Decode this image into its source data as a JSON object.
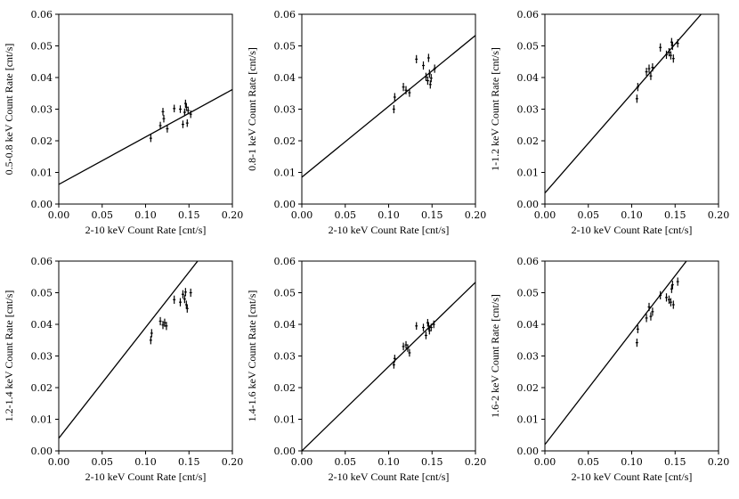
{
  "chart_data": [
    {
      "type": "scatter",
      "xlabel": "2-10 keV Count Rate [cnt/s]",
      "ylabel": "0.5-0.8 keV Count Rate [cnt/s]",
      "xlim": [
        0,
        0.2
      ],
      "ylim": [
        0,
        0.06
      ],
      "xticks": [
        "0.00",
        "0.05",
        "0.10",
        "0.15",
        "0.20"
      ],
      "yticks": [
        "0.00",
        "0.01",
        "0.02",
        "0.03",
        "0.04",
        "0.05",
        "0.06"
      ],
      "fit_line": {
        "x": [
          0,
          0.2
        ],
        "y": [
          0.0062,
          0.0362
        ]
      },
      "points": [
        {
          "x": 0.106,
          "y": 0.0208,
          "xerr": 0.0015,
          "yerr": 0.0012
        },
        {
          "x": 0.117,
          "y": 0.0248,
          "xerr": 0.0015,
          "yerr": 0.0012
        },
        {
          "x": 0.12,
          "y": 0.0292,
          "xerr": 0.0015,
          "yerr": 0.0012
        },
        {
          "x": 0.121,
          "y": 0.027,
          "xerr": 0.0015,
          "yerr": 0.0012
        },
        {
          "x": 0.125,
          "y": 0.0238,
          "xerr": 0.0015,
          "yerr": 0.0012
        },
        {
          "x": 0.133,
          "y": 0.0302,
          "xerr": 0.0015,
          "yerr": 0.0012
        },
        {
          "x": 0.14,
          "y": 0.03,
          "xerr": 0.0015,
          "yerr": 0.0012
        },
        {
          "x": 0.143,
          "y": 0.0252,
          "xerr": 0.0015,
          "yerr": 0.0012
        },
        {
          "x": 0.145,
          "y": 0.029,
          "xerr": 0.0015,
          "yerr": 0.0012
        },
        {
          "x": 0.146,
          "y": 0.0318,
          "xerr": 0.0015,
          "yerr": 0.0012
        },
        {
          "x": 0.147,
          "y": 0.0306,
          "xerr": 0.0015,
          "yerr": 0.0012
        },
        {
          "x": 0.148,
          "y": 0.0256,
          "xerr": 0.0015,
          "yerr": 0.0012
        },
        {
          "x": 0.149,
          "y": 0.0296,
          "xerr": 0.0015,
          "yerr": 0.0012
        },
        {
          "x": 0.152,
          "y": 0.0284,
          "xerr": 0.0015,
          "yerr": 0.0012
        }
      ]
    },
    {
      "type": "scatter",
      "xlabel": "2-10 keV Count Rate [cnt/s]",
      "ylabel": "0.8-1 keV Count Rate [cnt/s]",
      "xlim": [
        0,
        0.2
      ],
      "ylim": [
        0,
        0.06
      ],
      "xticks": [
        "0.00",
        "0.05",
        "0.10",
        "0.15",
        "0.20"
      ],
      "yticks": [
        "0.00",
        "0.01",
        "0.02",
        "0.03",
        "0.04",
        "0.05",
        "0.06"
      ],
      "fit_line": {
        "x": [
          0,
          0.2
        ],
        "y": [
          0.0085,
          0.0533
        ]
      },
      "points": [
        {
          "x": 0.106,
          "y": 0.03,
          "xerr": 0.0015,
          "yerr": 0.0013
        },
        {
          "x": 0.107,
          "y": 0.0338,
          "xerr": 0.0015,
          "yerr": 0.0013
        },
        {
          "x": 0.117,
          "y": 0.037,
          "xerr": 0.0015,
          "yerr": 0.0013
        },
        {
          "x": 0.12,
          "y": 0.036,
          "xerr": 0.0015,
          "yerr": 0.0013
        },
        {
          "x": 0.124,
          "y": 0.0352,
          "xerr": 0.0015,
          "yerr": 0.0013
        },
        {
          "x": 0.132,
          "y": 0.0458,
          "xerr": 0.0015,
          "yerr": 0.0013
        },
        {
          "x": 0.14,
          "y": 0.0438,
          "xerr": 0.0015,
          "yerr": 0.0013
        },
        {
          "x": 0.143,
          "y": 0.0402,
          "xerr": 0.0015,
          "yerr": 0.0013
        },
        {
          "x": 0.145,
          "y": 0.039,
          "xerr": 0.0015,
          "yerr": 0.0013
        },
        {
          "x": 0.146,
          "y": 0.0462,
          "xerr": 0.0015,
          "yerr": 0.0013
        },
        {
          "x": 0.147,
          "y": 0.0412,
          "xerr": 0.0015,
          "yerr": 0.0013
        },
        {
          "x": 0.148,
          "y": 0.0378,
          "xerr": 0.0015,
          "yerr": 0.0013
        },
        {
          "x": 0.149,
          "y": 0.0398,
          "xerr": 0.0015,
          "yerr": 0.0013
        },
        {
          "x": 0.153,
          "y": 0.0428,
          "xerr": 0.0015,
          "yerr": 0.0013
        }
      ]
    },
    {
      "type": "scatter",
      "xlabel": "2-10 keV Count Rate [cnt/s]",
      "ylabel": "1-1.2 keV Count Rate [cnt/s]",
      "xlim": [
        0,
        0.2
      ],
      "ylim": [
        0,
        0.06
      ],
      "xticks": [
        "0.00",
        "0.05",
        "0.10",
        "0.15",
        "0.20"
      ],
      "yticks": [
        "0.00",
        "0.01",
        "0.02",
        "0.03",
        "0.04",
        "0.05",
        "0.06"
      ],
      "fit_line": {
        "x": [
          0,
          0.18
        ],
        "y": [
          0.0035,
          0.06
        ]
      },
      "points": [
        {
          "x": 0.106,
          "y": 0.0333,
          "xerr": 0.0015,
          "yerr": 0.0013
        },
        {
          "x": 0.107,
          "y": 0.037,
          "xerr": 0.0015,
          "yerr": 0.0013
        },
        {
          "x": 0.117,
          "y": 0.0418,
          "xerr": 0.0015,
          "yerr": 0.0013
        },
        {
          "x": 0.12,
          "y": 0.0428,
          "xerr": 0.0015,
          "yerr": 0.0013
        },
        {
          "x": 0.122,
          "y": 0.0405,
          "xerr": 0.0015,
          "yerr": 0.0013
        },
        {
          "x": 0.124,
          "y": 0.0432,
          "xerr": 0.0015,
          "yerr": 0.0013
        },
        {
          "x": 0.133,
          "y": 0.0495,
          "xerr": 0.0015,
          "yerr": 0.0013
        },
        {
          "x": 0.14,
          "y": 0.0472,
          "xerr": 0.0015,
          "yerr": 0.0013
        },
        {
          "x": 0.143,
          "y": 0.048,
          "xerr": 0.0015,
          "yerr": 0.0013
        },
        {
          "x": 0.145,
          "y": 0.047,
          "xerr": 0.0015,
          "yerr": 0.0013
        },
        {
          "x": 0.146,
          "y": 0.0512,
          "xerr": 0.0015,
          "yerr": 0.0013
        },
        {
          "x": 0.147,
          "y": 0.05,
          "xerr": 0.0015,
          "yerr": 0.0013
        },
        {
          "x": 0.148,
          "y": 0.046,
          "xerr": 0.0015,
          "yerr": 0.0013
        },
        {
          "x": 0.153,
          "y": 0.0508,
          "xerr": 0.0015,
          "yerr": 0.0013
        }
      ]
    },
    {
      "type": "scatter",
      "xlabel": "2-10 keV Count Rate [cnt/s]",
      "ylabel": "1.2-1.4 keV Count Rate [cnt/s]",
      "xlim": [
        0,
        0.2
      ],
      "ylim": [
        0,
        0.06
      ],
      "xticks": [
        "0.00",
        "0.05",
        "0.10",
        "0.15",
        "0.20"
      ],
      "yticks": [
        "0.00",
        "0.01",
        "0.02",
        "0.03",
        "0.04",
        "0.05",
        "0.06"
      ],
      "fit_line": {
        "x": [
          0,
          0.16
        ],
        "y": [
          0.004,
          0.06
        ]
      },
      "points": [
        {
          "x": 0.106,
          "y": 0.035,
          "xerr": 0.0015,
          "yerr": 0.0013
        },
        {
          "x": 0.107,
          "y": 0.0372,
          "xerr": 0.0015,
          "yerr": 0.0013
        },
        {
          "x": 0.117,
          "y": 0.041,
          "xerr": 0.0015,
          "yerr": 0.0013
        },
        {
          "x": 0.12,
          "y": 0.0398,
          "xerr": 0.0015,
          "yerr": 0.0013
        },
        {
          "x": 0.122,
          "y": 0.0405,
          "xerr": 0.0015,
          "yerr": 0.0013
        },
        {
          "x": 0.124,
          "y": 0.0395,
          "xerr": 0.0015,
          "yerr": 0.0013
        },
        {
          "x": 0.133,
          "y": 0.0478,
          "xerr": 0.0015,
          "yerr": 0.0013
        },
        {
          "x": 0.14,
          "y": 0.047,
          "xerr": 0.0015,
          "yerr": 0.0013
        },
        {
          "x": 0.143,
          "y": 0.0495,
          "xerr": 0.0015,
          "yerr": 0.0013
        },
        {
          "x": 0.145,
          "y": 0.048,
          "xerr": 0.0015,
          "yerr": 0.0013
        },
        {
          "x": 0.146,
          "y": 0.0502,
          "xerr": 0.0015,
          "yerr": 0.0013
        },
        {
          "x": 0.147,
          "y": 0.0462,
          "xerr": 0.0015,
          "yerr": 0.0013
        },
        {
          "x": 0.148,
          "y": 0.045,
          "xerr": 0.0015,
          "yerr": 0.0013
        },
        {
          "x": 0.152,
          "y": 0.05,
          "xerr": 0.0015,
          "yerr": 0.0013
        }
      ]
    },
    {
      "type": "scatter",
      "xlabel": "2-10 keV Count Rate [cnt/s]",
      "ylabel": "1.4-1.6 keV Count Rate [cnt/s]",
      "xlim": [
        0,
        0.2
      ],
      "ylim": [
        0,
        0.06
      ],
      "xticks": [
        "0.00",
        "0.05",
        "0.10",
        "0.15",
        "0.20"
      ],
      "yticks": [
        "0.00",
        "0.01",
        "0.02",
        "0.03",
        "0.04",
        "0.05",
        "0.06"
      ],
      "fit_line": {
        "x": [
          0,
          0.2
        ],
        "y": [
          0.0,
          0.0533
        ]
      },
      "points": [
        {
          "x": 0.106,
          "y": 0.0272,
          "xerr": 0.0015,
          "yerr": 0.0012
        },
        {
          "x": 0.107,
          "y": 0.0292,
          "xerr": 0.0015,
          "yerr": 0.0012
        },
        {
          "x": 0.117,
          "y": 0.033,
          "xerr": 0.0015,
          "yerr": 0.0012
        },
        {
          "x": 0.12,
          "y": 0.0335,
          "xerr": 0.0015,
          "yerr": 0.0012
        },
        {
          "x": 0.122,
          "y": 0.0325,
          "xerr": 0.0015,
          "yerr": 0.0012
        },
        {
          "x": 0.124,
          "y": 0.031,
          "xerr": 0.0015,
          "yerr": 0.0012
        },
        {
          "x": 0.132,
          "y": 0.0395,
          "xerr": 0.0015,
          "yerr": 0.0012
        },
        {
          "x": 0.14,
          "y": 0.039,
          "xerr": 0.0015,
          "yerr": 0.0012
        },
        {
          "x": 0.143,
          "y": 0.0365,
          "xerr": 0.0015,
          "yerr": 0.0012
        },
        {
          "x": 0.145,
          "y": 0.0405,
          "xerr": 0.0015,
          "yerr": 0.0012
        },
        {
          "x": 0.146,
          "y": 0.0395,
          "xerr": 0.0015,
          "yerr": 0.0012
        },
        {
          "x": 0.147,
          "y": 0.038,
          "xerr": 0.0015,
          "yerr": 0.0012
        },
        {
          "x": 0.149,
          "y": 0.039,
          "xerr": 0.0015,
          "yerr": 0.0012
        },
        {
          "x": 0.152,
          "y": 0.04,
          "xerr": 0.0015,
          "yerr": 0.0012
        }
      ]
    },
    {
      "type": "scatter",
      "xlabel": "2-10 keV Count Rate [cnt/s]",
      "ylabel": "1.6-2 keV Count Rate [cnt/s]",
      "xlim": [
        0,
        0.2
      ],
      "ylim": [
        0,
        0.06
      ],
      "xticks": [
        "0.00",
        "0.05",
        "0.10",
        "0.15",
        "0.20"
      ],
      "yticks": [
        "0.00",
        "0.01",
        "0.02",
        "0.03",
        "0.04",
        "0.05",
        "0.06"
      ],
      "fit_line": {
        "x": [
          0,
          0.163
        ],
        "y": [
          0.002,
          0.06
        ]
      },
      "points": [
        {
          "x": 0.106,
          "y": 0.0342,
          "xerr": 0.0015,
          "yerr": 0.0013
        },
        {
          "x": 0.107,
          "y": 0.0385,
          "xerr": 0.0015,
          "yerr": 0.0013
        },
        {
          "x": 0.117,
          "y": 0.042,
          "xerr": 0.0015,
          "yerr": 0.0013
        },
        {
          "x": 0.12,
          "y": 0.0455,
          "xerr": 0.0015,
          "yerr": 0.0013
        },
        {
          "x": 0.122,
          "y": 0.0425,
          "xerr": 0.0015,
          "yerr": 0.0013
        },
        {
          "x": 0.124,
          "y": 0.044,
          "xerr": 0.0015,
          "yerr": 0.0013
        },
        {
          "x": 0.133,
          "y": 0.0492,
          "xerr": 0.0015,
          "yerr": 0.0013
        },
        {
          "x": 0.14,
          "y": 0.0485,
          "xerr": 0.0015,
          "yerr": 0.0013
        },
        {
          "x": 0.143,
          "y": 0.0478,
          "xerr": 0.0015,
          "yerr": 0.0013
        },
        {
          "x": 0.145,
          "y": 0.047,
          "xerr": 0.0015,
          "yerr": 0.0013
        },
        {
          "x": 0.146,
          "y": 0.0512,
          "xerr": 0.0015,
          "yerr": 0.0013
        },
        {
          "x": 0.147,
          "y": 0.0525,
          "xerr": 0.0015,
          "yerr": 0.0013
        },
        {
          "x": 0.148,
          "y": 0.0462,
          "xerr": 0.0015,
          "yerr": 0.0013
        },
        {
          "x": 0.153,
          "y": 0.0535,
          "xerr": 0.0015,
          "yerr": 0.0013
        }
      ]
    }
  ]
}
